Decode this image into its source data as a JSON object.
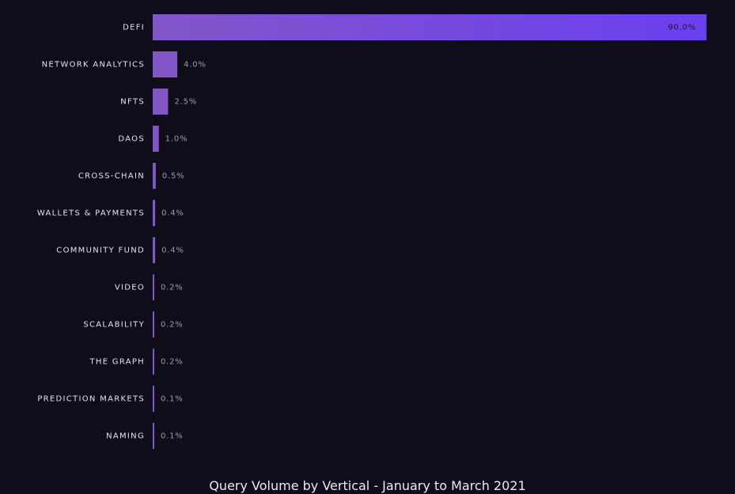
{
  "chart_data": {
    "type": "bar",
    "orientation": "horizontal",
    "title": "Query Volume by Vertical - January to March 2021",
    "xlabel": "",
    "ylabel": "",
    "xlim": [
      0,
      90
    ],
    "grid": false,
    "legend": "none",
    "value_suffix": "%",
    "categories": [
      "DEFI",
      "NETWORK ANALYTICS",
      "NFTS",
      "DAOS",
      "CROSS-CHAIN",
      "WALLETS & PAYMENTS",
      "COMMUNITY FUND",
      "VIDEO",
      "SCALABILITY",
      "THE GRAPH",
      "PREDICTION MARKETS",
      "NAMING"
    ],
    "values": [
      90.0,
      4.0,
      2.5,
      1.0,
      0.5,
      0.4,
      0.4,
      0.2,
      0.2,
      0.2,
      0.1,
      0.1
    ],
    "value_labels": [
      "90.0%",
      "4.0%",
      "2.5%",
      "1.0%",
      "0.5%",
      "0.4%",
      "0.4%",
      "0.2%",
      "0.2%",
      "0.2%",
      "0.1%",
      "0.1%"
    ],
    "colors": {
      "background": "#0f0d1a",
      "bar": "#8356c8",
      "bar_gradient_end": "#6a3ff0",
      "label": "#e6e3ee",
      "value_label": "#9f9ab0"
    }
  }
}
